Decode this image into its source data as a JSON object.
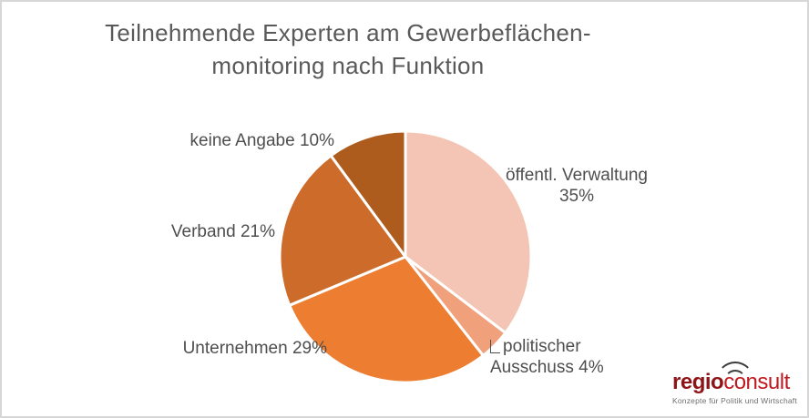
{
  "title": "Teilnehmende Experten am Gewerbeflächen-\nmonitoring nach Funktion",
  "chart_data": {
    "type": "pie",
    "title": "Teilnehmende Experten am Gewerbeflächenmonitoring nach Funktion",
    "categories": [
      "öffentl. Verwaltung",
      "politischer Ausschuss",
      "Unternehmen",
      "Verband",
      "keine Angabe"
    ],
    "values": [
      35,
      4,
      29,
      21,
      10
    ],
    "unit": "%",
    "colors": [
      "#f4c5b4",
      "#f0a17c",
      "#ed7d31",
      "#cd6b2a",
      "#ad5c1e"
    ],
    "start_angle_deg": 0,
    "direction": "clockwise",
    "separator_color": "#ffffff",
    "display_labels": {
      "oeffentl": "öffentl. Verwaltung\n35%",
      "politisch": "politischer\nAusschuss 4%",
      "unternehmen": "Unternehmen 29%",
      "verband": "Verband 21%",
      "keine": "keine Angabe 10%"
    }
  },
  "logo": {
    "brand_bold": "regio",
    "brand_light": "consult",
    "tagline": "Konzepte für Politik und Wirtschaft"
  }
}
